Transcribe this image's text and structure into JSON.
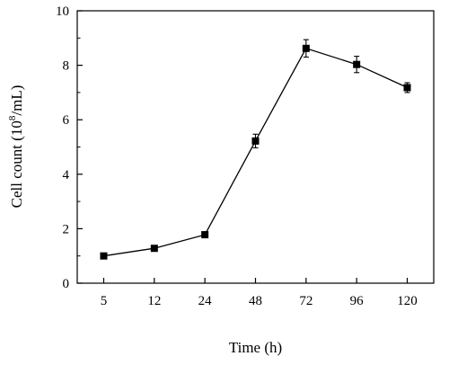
{
  "chart_data": {
    "type": "line",
    "categories": [
      "5",
      "12",
      "24",
      "48",
      "72",
      "96",
      "120"
    ],
    "series": [
      {
        "values": [
          1.0,
          1.28,
          1.78,
          5.22,
          8.62,
          8.03,
          7.18
        ],
        "errors": [
          0.05,
          0.06,
          0.07,
          0.25,
          0.32,
          0.3,
          0.18
        ]
      }
    ],
    "xlabel": "Time (h)",
    "ylabel_main": "Cell count (10",
    "ylabel_sup": "8",
    "ylabel_tail": "/mL)",
    "ylim": [
      0,
      10
    ],
    "yticks": [
      "0",
      "2",
      "4",
      "6",
      "8",
      "10"
    ],
    "grid": false,
    "colors": {
      "line": "#000000",
      "marker": "#000000"
    }
  }
}
